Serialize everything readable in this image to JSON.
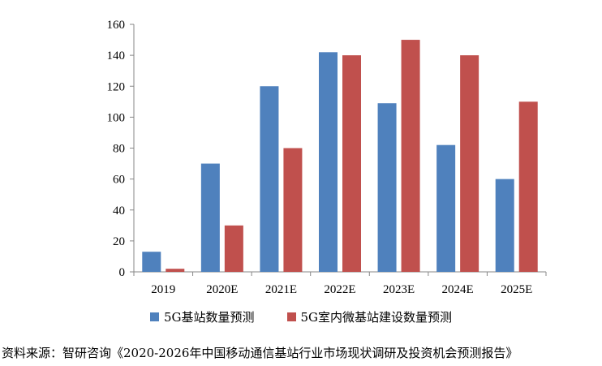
{
  "chart_data": {
    "type": "bar",
    "categories": [
      "2019",
      "2020E",
      "2021E",
      "2022E",
      "2023E",
      "2024E",
      "2025E"
    ],
    "series": [
      {
        "name": "5G基站数量预测",
        "color": "#4F81BD",
        "values": [
          13,
          70,
          120,
          142,
          109,
          82,
          60
        ]
      },
      {
        "name": "5G室内微基站建设数量预测",
        "color": "#C0504D",
        "values": [
          2,
          30,
          80,
          140,
          150,
          140,
          110
        ]
      }
    ],
    "yticks": [
      0,
      20,
      40,
      60,
      80,
      100,
      120,
      140,
      160
    ],
    "ylim": [
      0,
      160
    ],
    "grid": false,
    "legend_position": "bottom"
  },
  "source": "资料来源：智研咨询《2020-2026年中国移动通信基站行业市场现状调研及投资机会预测报告》"
}
